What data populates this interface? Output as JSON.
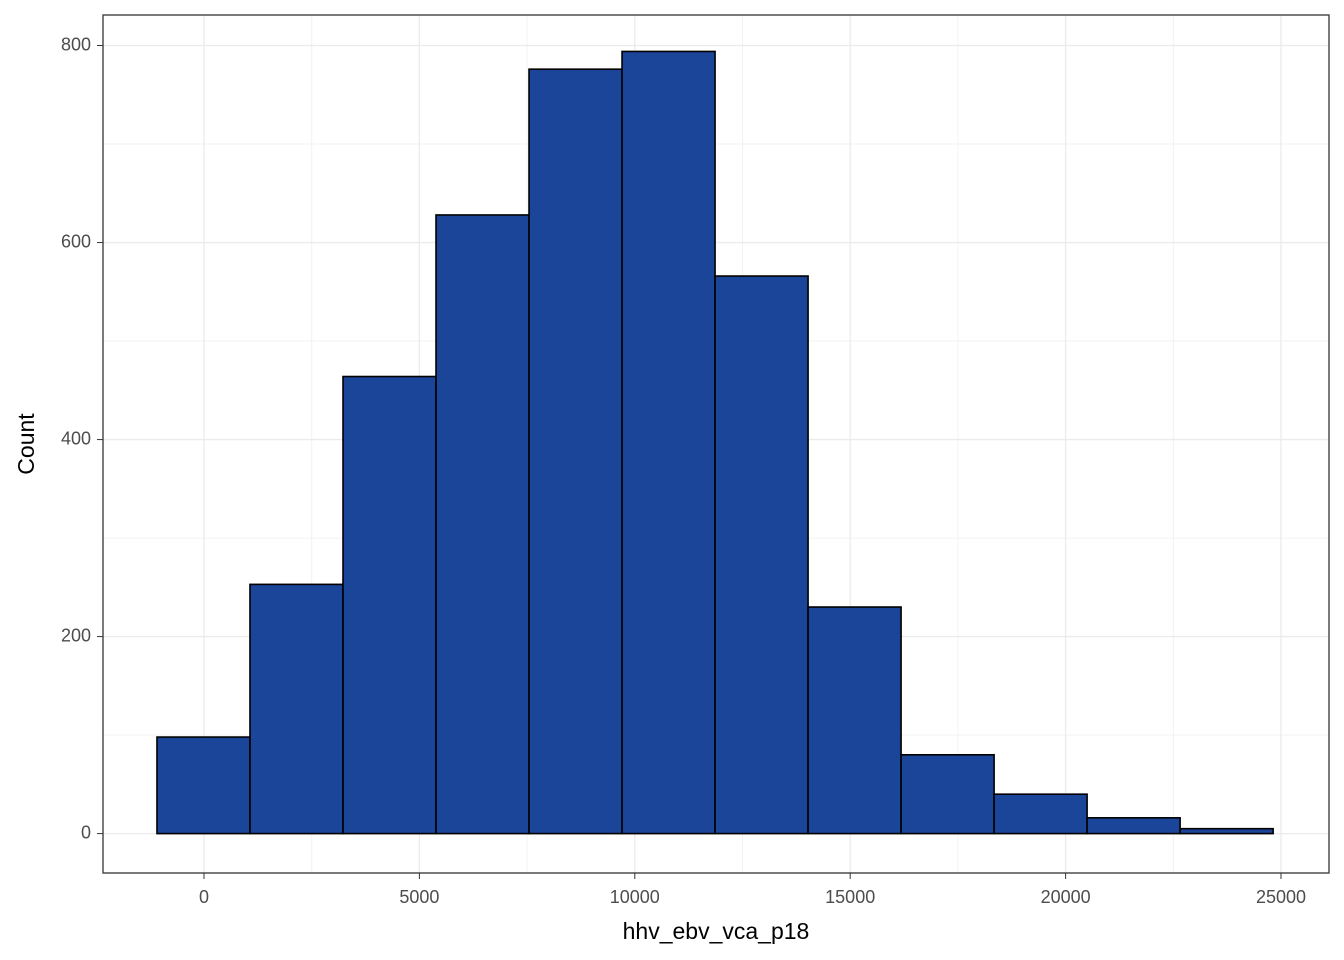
{
  "chart_data": {
    "type": "histogram",
    "x_label": "hhv_ebv_vca_p18",
    "y_label": "Count",
    "bins": [
      -1091,
      1068,
      3227,
      5386,
      7545,
      9704,
      11863,
      14022,
      16181,
      18340,
      20499,
      22658,
      24817
    ],
    "counts": [
      98,
      253,
      464,
      628,
      776,
      794,
      566,
      230,
      80,
      40,
      16,
      5
    ],
    "color": "#1a4599",
    "edge_color": "#000000",
    "xlim": [
      -2344,
      26114
    ],
    "xticks": [
      0,
      5000,
      10000,
      15000,
      20000,
      25000
    ],
    "ylim": [
      -40,
      831
    ],
    "yticks": [
      0,
      200,
      400,
      600,
      800
    ],
    "grid": true
  }
}
